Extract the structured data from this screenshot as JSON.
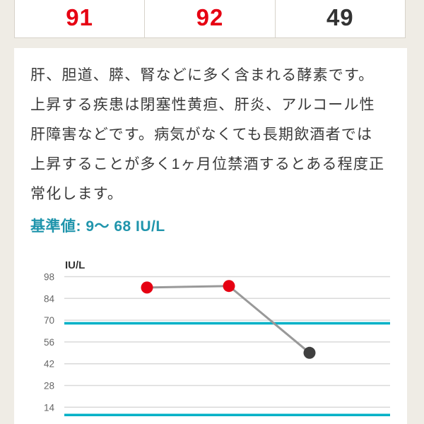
{
  "results_row": {
    "cells": [
      {
        "value": "91",
        "status": "above-range",
        "color": "#e60012"
      },
      {
        "value": "92",
        "status": "above-range",
        "color": "#e60012"
      },
      {
        "value": "49",
        "status": "in-range",
        "color": "#333333"
      }
    ]
  },
  "description": "肝、胆道、膵、腎などに多く含まれる酵素です。上昇する疾患は閉塞性黄疸、肝炎、アルコール性肝障害などです。病気がなくても長期飲酒者では上昇することが多く1ヶ月位禁酒するとある程度正常化します。",
  "reference_heading": "基準値: 9〜 68 IU/L",
  "chart_data": {
    "type": "line",
    "title": "",
    "unit_label": "IU/L",
    "ylabel": "IU/L",
    "xlabel": "",
    "x_points": [
      1,
      2,
      3
    ],
    "values": [
      91,
      92,
      49
    ],
    "point_colors": [
      "#e60012",
      "#e60012",
      "#3f3f3f"
    ],
    "line_color": "#999999",
    "yticks": [
      98,
      84,
      70,
      56,
      42,
      28,
      14
    ],
    "ylim": [
      5,
      102
    ],
    "grid": true,
    "legend": "none",
    "reference_range": {
      "low": 9,
      "high": 68,
      "line_color": "#00b1c7"
    }
  },
  "colors": {
    "page_background": "#efece5",
    "card_background": "#ffffff",
    "table_border": "#d7d3ca",
    "heading_teal": "#2095ac",
    "body_text": "#3a3a3a",
    "abnormal_red": "#e60012",
    "gridline": "#d9d9d9",
    "tick_label": "#666666"
  }
}
